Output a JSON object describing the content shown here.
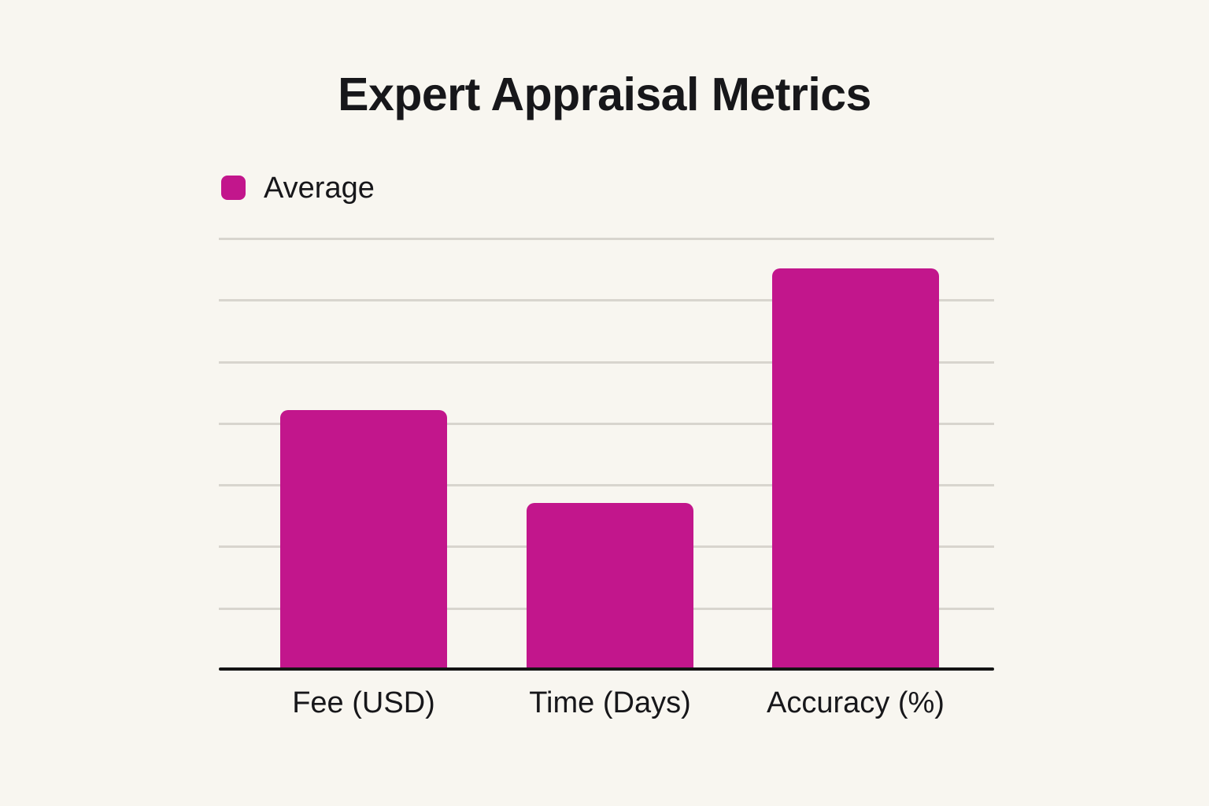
{
  "header": {
    "title": "Expert Appraisal Metrics"
  },
  "legend": {
    "items": [
      {
        "label": "Average",
        "color": "#C2168C",
        "swatch": "rounded-square"
      }
    ]
  },
  "colors": {
    "background": "#F8F6F0",
    "bar": "#C2168C",
    "text": "#17171A",
    "gridline": "#D8D5CE",
    "axis": "#141414"
  },
  "chart_data": {
    "type": "bar",
    "title": "Expert Appraisal Metrics",
    "categories": [
      "Fee (USD)",
      "Time (Days)",
      "Accuracy (%)"
    ],
    "series": [
      {
        "name": "Average",
        "values": [
          4.2,
          2.7,
          6.5
        ]
      }
    ],
    "xlabel": "",
    "ylabel": "",
    "ylim": [
      0,
      7
    ],
    "gridlines": 7,
    "grid": "horizontal",
    "y_axis_tick_labels_visible": false,
    "legend_position": "top-left",
    "note": "Y axis has no tick labels; values estimated in gridline units (1 unit per gridline interval, baseline = 0, top gridline = 7)"
  }
}
